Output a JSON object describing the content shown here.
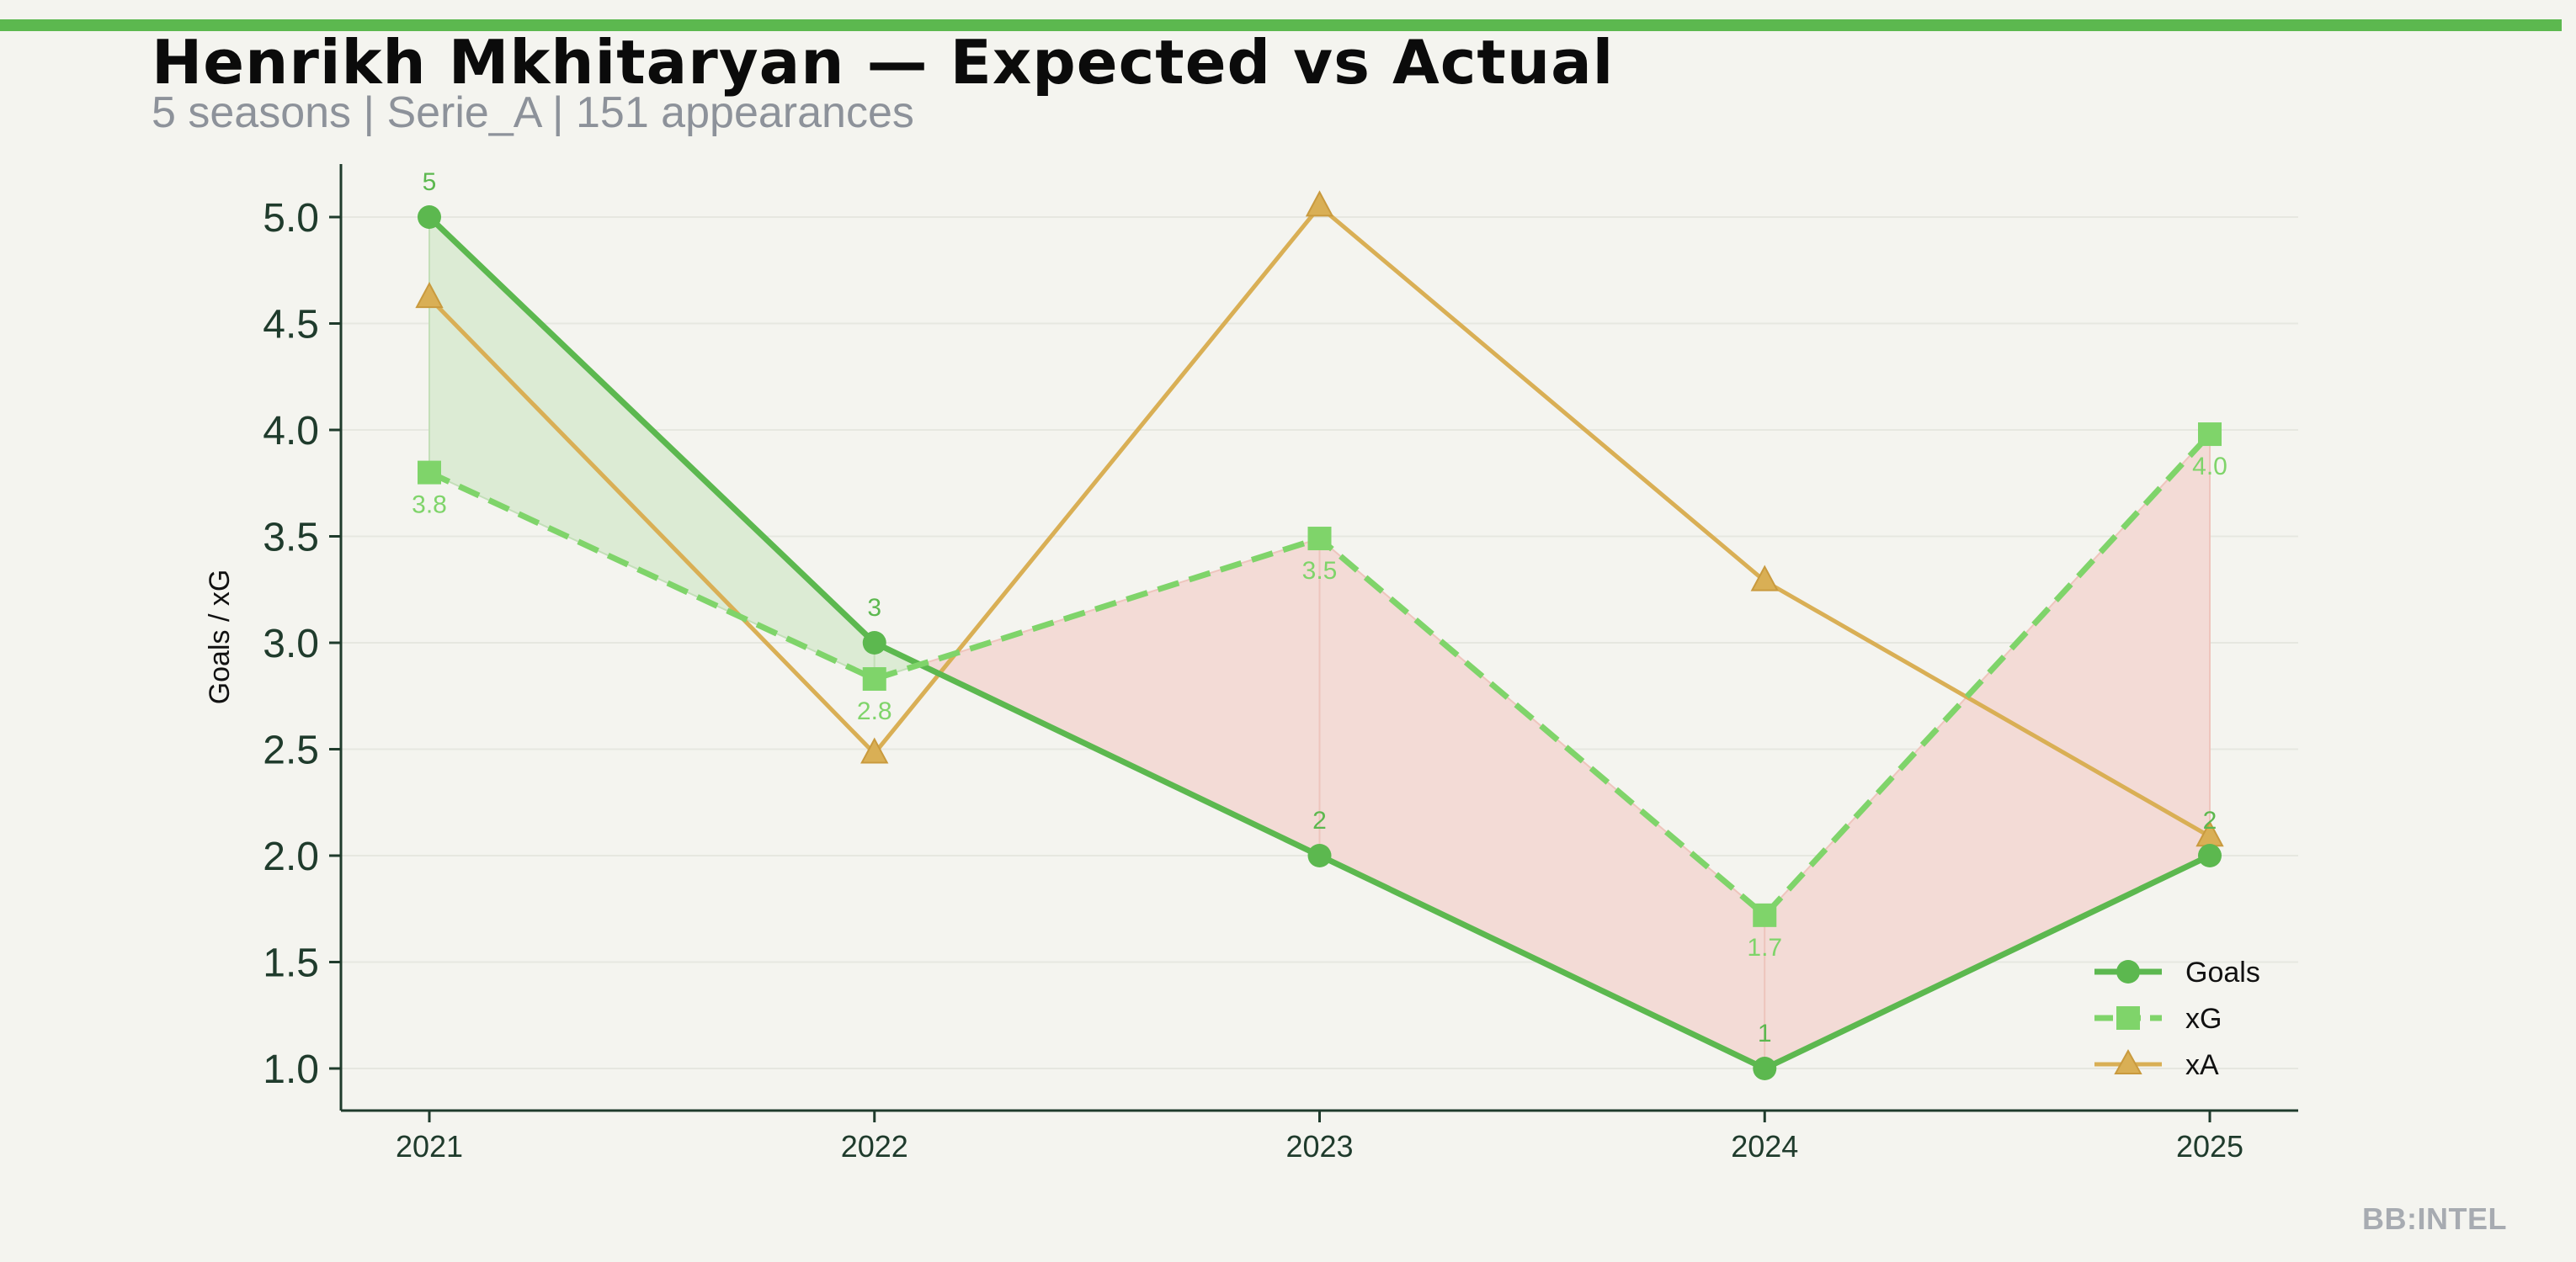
{
  "header": {
    "title": "Henrikh Mkhitaryan — Expected vs Actual",
    "subtitle": "5 seasons | Serie_A | 151 appearances"
  },
  "watermark": "BB:INTEL",
  "colors": {
    "accent": "#5cb84f",
    "goals": "#5cb84f",
    "xg": "#7fd46a",
    "xa": "#d9af55",
    "overperform_fill": "#dcebd4",
    "underperform_fill": "#f3dbd6",
    "axis": "#1f3b2c"
  },
  "chart_data": {
    "type": "line",
    "title": "Henrikh Mkhitaryan — Expected vs Actual",
    "x": [
      "2021",
      "2022",
      "2023",
      "2024",
      "2025"
    ],
    "xlabel": "",
    "ylabel": "Goals / xG",
    "ylim": [
      0.85,
      5.25
    ],
    "yticks": [
      "1.0",
      "1.5",
      "2.0",
      "2.5",
      "3.0",
      "3.5",
      "4.0",
      "4.5",
      "5.0"
    ],
    "grid": true,
    "legend": "lower-right",
    "series": [
      {
        "name": "Goals",
        "values": [
          5,
          3,
          2,
          1,
          2
        ],
        "labels": [
          "5",
          "3",
          "2",
          "1",
          "2"
        ],
        "style": "solid",
        "marker": "circle"
      },
      {
        "name": "xG",
        "values": [
          3.8,
          2.83,
          3.49,
          1.72,
          3.98
        ],
        "labels": [
          "3.8",
          "2.8",
          "3.5",
          "1.7",
          "4.0"
        ],
        "style": "dashed",
        "marker": "square"
      },
      {
        "name": "xA",
        "values": [
          4.62,
          2.48,
          5.05,
          3.29,
          2.09
        ],
        "style": "solid",
        "marker": "triangle"
      }
    ]
  }
}
